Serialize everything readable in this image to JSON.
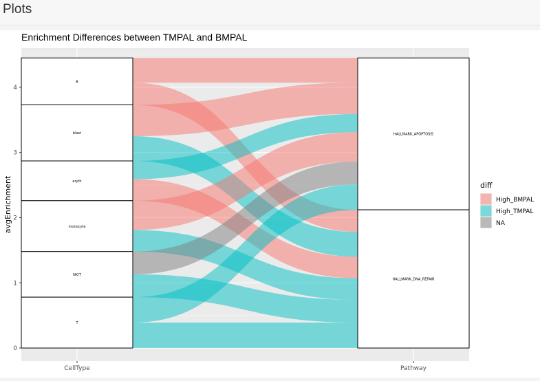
{
  "page": {
    "header_title": "Plots"
  },
  "chart_data": {
    "type": "alluvial",
    "title": "Enrichment Differences between TMPAL and BMPAL",
    "xlabel": "",
    "ylabel": "avgEnrichment",
    "axes": [
      "CellType",
      "Pathway"
    ],
    "ylim": [
      -0.2,
      4.6
    ],
    "yticks": [
      0,
      1,
      2,
      3,
      4
    ],
    "grid": true,
    "legend": {
      "title": "diff",
      "position": "right",
      "entries": [
        {
          "label": "High_BMPAL",
          "color": "#F8766D"
        },
        {
          "label": "High_TMPAL",
          "color": "#00BFC4"
        },
        {
          "label": "NA",
          "color": "#7F7F7F"
        }
      ]
    },
    "strata": {
      "CellType": [
        "B",
        "blast",
        "eryth",
        "monocyte",
        "NK/T",
        "T"
      ],
      "Pathway": [
        "HALLMARK_APOPTOSIS",
        "HALLMARK_DNA_REPAIR"
      ]
    },
    "flows": [
      {
        "CellType": "B",
        "Pathway": "HALLMARK_APOPTOSIS",
        "diff": "High_BMPAL",
        "value": 0.38
      },
      {
        "CellType": "B",
        "Pathway": "HALLMARK_DNA_REPAIR",
        "diff": "High_BMPAL",
        "value": 0.34
      },
      {
        "CellType": "blast",
        "Pathway": "HALLMARK_APOPTOSIS",
        "diff": "High_BMPAL",
        "value": 0.48
      },
      {
        "CellType": "blast",
        "Pathway": "HALLMARK_DNA_REPAIR",
        "diff": "High_TMPAL",
        "value": 0.38
      },
      {
        "CellType": "eryth",
        "Pathway": "HALLMARK_APOPTOSIS",
        "diff": "High_TMPAL",
        "value": 0.28
      },
      {
        "CellType": "eryth",
        "Pathway": "HALLMARK_DNA_REPAIR",
        "diff": "High_BMPAL",
        "value": 0.33
      },
      {
        "CellType": "monocyte",
        "Pathway": "HALLMARK_APOPTOSIS",
        "diff": "High_BMPAL",
        "value": 0.45
      },
      {
        "CellType": "monocyte",
        "Pathway": "HALLMARK_DNA_REPAIR",
        "diff": "High_TMPAL",
        "value": 0.33
      },
      {
        "CellType": "NK/T",
        "Pathway": "HALLMARK_APOPTOSIS",
        "diff": "NA",
        "value": 0.35
      },
      {
        "CellType": "NK/T",
        "Pathway": "HALLMARK_DNA_REPAIR",
        "diff": "High_TMPAL",
        "value": 0.35
      },
      {
        "CellType": "T",
        "Pathway": "HALLMARK_APOPTOSIS",
        "diff": "High_TMPAL",
        "value": 0.39
      },
      {
        "CellType": "T",
        "Pathway": "HALLMARK_DNA_REPAIR",
        "diff": "High_TMPAL",
        "value": 0.39
      }
    ]
  }
}
